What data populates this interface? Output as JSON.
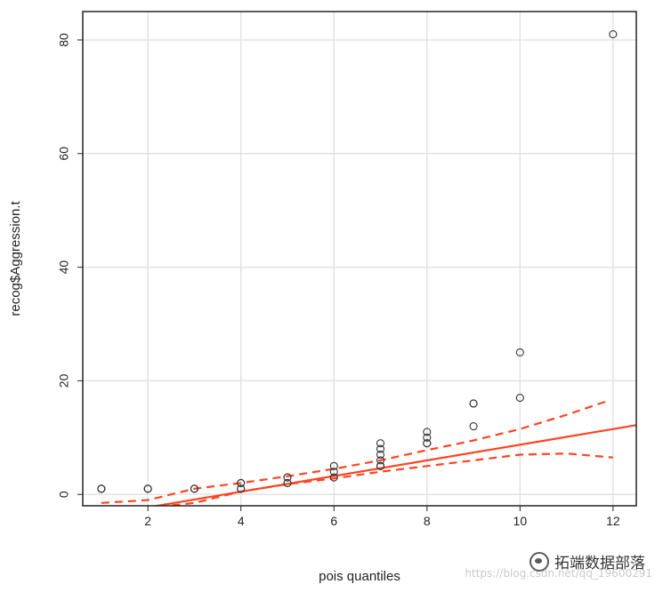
{
  "chart_data": {
    "type": "scatter",
    "xlabel": "pois quantiles",
    "ylabel": "recog$Aggression.t",
    "xlim": [
      0.6,
      12.5
    ],
    "ylim": [
      -2,
      85
    ],
    "xticks": [
      2,
      4,
      6,
      8,
      10,
      12
    ],
    "yticks": [
      0,
      20,
      40,
      60,
      80
    ],
    "grid": true,
    "points": [
      [
        1,
        1
      ],
      [
        1,
        1
      ],
      [
        1,
        1
      ],
      [
        2,
        1
      ],
      [
        2,
        1
      ],
      [
        2,
        1
      ],
      [
        3,
        1
      ],
      [
        3,
        1
      ],
      [
        3,
        1
      ],
      [
        4,
        1
      ],
      [
        4,
        1
      ],
      [
        4,
        2
      ],
      [
        4,
        2
      ],
      [
        5,
        2
      ],
      [
        5,
        2
      ],
      [
        5,
        3
      ],
      [
        5,
        3
      ],
      [
        6,
        3
      ],
      [
        6,
        4
      ],
      [
        6,
        5
      ],
      [
        7,
        5
      ],
      [
        7,
        5
      ],
      [
        7,
        6
      ],
      [
        7,
        7
      ],
      [
        7,
        8
      ],
      [
        7,
        9
      ],
      [
        8,
        9
      ],
      [
        8,
        9
      ],
      [
        8,
        10
      ],
      [
        8,
        11
      ],
      [
        9,
        12
      ],
      [
        9,
        16
      ],
      [
        9,
        16
      ],
      [
        10,
        17
      ],
      [
        10,
        25
      ],
      [
        12,
        81
      ]
    ],
    "fit_line": {
      "x": [
        0.6,
        12.5
      ],
      "y": [
        -4.2,
        12.2
      ],
      "color": "#ff4422"
    },
    "envelope_upper": {
      "x": [
        1,
        2,
        3,
        4,
        5,
        6,
        7,
        8,
        9,
        10,
        11,
        11.9
      ],
      "y": [
        -1.5,
        -1.0,
        1.0,
        2.0,
        3.2,
        4.5,
        6.0,
        7.8,
        9.5,
        11.5,
        14.0,
        16.5
      ],
      "color": "#ff4422"
    },
    "envelope_lower": {
      "x": [
        1.95,
        3,
        4,
        5,
        6,
        7,
        8,
        9,
        10,
        11,
        12
      ],
      "y": [
        -2.4,
        -1.5,
        0.5,
        1.8,
        2.8,
        4.0,
        5.0,
        6.0,
        7.0,
        7.2,
        6.5
      ],
      "color": "#ff4422"
    }
  },
  "watermark": "https://blog.csdn.net/qq_19600291",
  "badge": {
    "label": "拓端数据部落",
    "icon": "wechat-icon"
  }
}
